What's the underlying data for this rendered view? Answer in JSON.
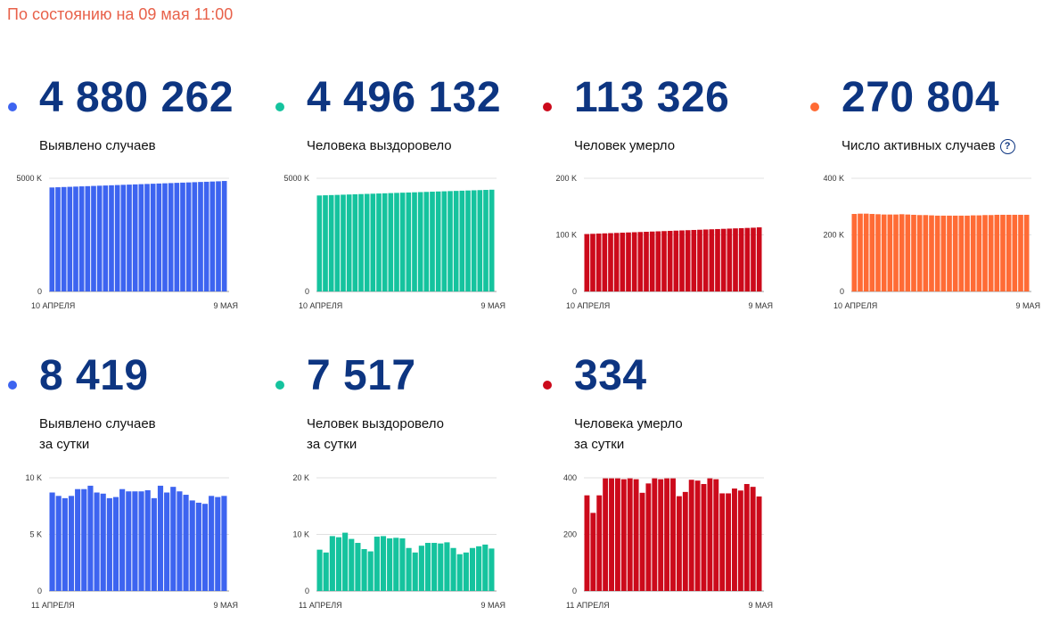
{
  "status_text": "По состоянию на 09 мая 11:00",
  "chart_data": [
    {
      "type": "bar",
      "big_value": "4 880 262",
      "label_line1": "Выявлено случаев",
      "color": "#3d64f0",
      "ylim": [
        0,
        5000
      ],
      "yticks": [
        {
          "v": 0,
          "label": "0"
        },
        {
          "v": 5000,
          "label": "5000 K"
        }
      ],
      "x_start_label": "10 АПРЕЛЯ",
      "x_end_label": "9 МАЯ",
      "values": [
        4594,
        4604,
        4614,
        4623,
        4633,
        4643,
        4652,
        4662,
        4672,
        4681,
        4691,
        4701,
        4711,
        4720,
        4730,
        4740,
        4749,
        4759,
        4769,
        4778,
        4788,
        4798,
        4808,
        4817,
        4827,
        4837,
        4846,
        4856,
        4866,
        4880
      ]
    },
    {
      "type": "bar",
      "big_value": "4 496 132",
      "label_line1": "Человека выздоровело",
      "color": "#15c39e",
      "ylim": [
        0,
        5000
      ],
      "yticks": [
        {
          "v": 0,
          "label": "0"
        },
        {
          "v": 5000,
          "label": "5000 K"
        }
      ],
      "x_start_label": "10 АПРЕЛЯ",
      "x_end_label": "9 МАЯ",
      "values": [
        4240,
        4249,
        4258,
        4266,
        4275,
        4284,
        4293,
        4302,
        4311,
        4319,
        4328,
        4337,
        4346,
        4355,
        4364,
        4372,
        4381,
        4390,
        4399,
        4408,
        4417,
        4425,
        4434,
        4443,
        4452,
        4461,
        4470,
        4478,
        4487,
        4496
      ]
    },
    {
      "type": "bar",
      "big_value": "113 326",
      "label_line1": "Человек умерло",
      "color": "#cc0a1b",
      "ylim": [
        0,
        200
      ],
      "yticks": [
        {
          "v": 0,
          "label": "0"
        },
        {
          "v": 100,
          "label": "100 K"
        },
        {
          "v": 200,
          "label": "200 K"
        }
      ],
      "x_start_label": "10 АПРЕЛЯ",
      "x_end_label": "9 МАЯ",
      "values": [
        101.5,
        101.9,
        102.3,
        102.7,
        103.1,
        103.5,
        103.9,
        104.3,
        104.7,
        105.1,
        105.5,
        105.9,
        106.3,
        106.7,
        107.1,
        107.5,
        107.9,
        108.3,
        108.7,
        109.1,
        109.5,
        109.9,
        110.3,
        110.7,
        111.1,
        111.5,
        111.9,
        112.3,
        112.7,
        113.3
      ]
    },
    {
      "type": "bar",
      "big_value": "270 804",
      "label_line1": "Число активных случаев",
      "has_help": true,
      "help_glyph": "?",
      "color": "#ff6b35",
      "ylim": [
        0,
        400
      ],
      "yticks": [
        {
          "v": 0,
          "label": "0"
        },
        {
          "v": 200,
          "label": "200 K"
        },
        {
          "v": 400,
          "label": "400 K"
        }
      ],
      "x_start_label": "10 АПРЕЛЯ",
      "x_end_label": "9 МАЯ",
      "values": [
        274,
        275,
        275,
        274,
        273,
        272,
        272,
        272,
        273,
        272,
        271,
        270,
        270,
        269,
        268,
        268,
        268,
        268,
        268,
        268,
        269,
        269,
        270,
        270,
        271,
        271,
        271,
        271,
        271,
        271
      ]
    },
    {
      "type": "bar",
      "big_value": "8 419",
      "label_line1": "Выявлено случаев",
      "label_line2": "за сутки",
      "color": "#3d64f0",
      "ylim": [
        0,
        10
      ],
      "yticks": [
        {
          "v": 0,
          "label": "0"
        },
        {
          "v": 5,
          "label": "5 K"
        },
        {
          "v": 10,
          "label": "10 K"
        }
      ],
      "x_start_label": "11 АПРЕЛЯ",
      "x_end_label": "9 МАЯ",
      "values": [
        8.7,
        8.4,
        8.2,
        8.4,
        9.0,
        9.0,
        9.3,
        8.7,
        8.6,
        8.2,
        8.3,
        9.0,
        8.8,
        8.8,
        8.8,
        8.9,
        8.2,
        9.3,
        8.7,
        9.2,
        8.8,
        8.5,
        8.0,
        7.8,
        7.7,
        8.4,
        8.3,
        8.4
      ]
    },
    {
      "type": "bar",
      "big_value": "7 517",
      "label_line1": "Человек выздоровело",
      "label_line2": "за сутки",
      "color": "#15c39e",
      "ylim": [
        0,
        20
      ],
      "yticks": [
        {
          "v": 0,
          "label": "0"
        },
        {
          "v": 10,
          "label": "10 K"
        },
        {
          "v": 20,
          "label": "20 K"
        }
      ],
      "x_start_label": "11 АПРЕЛЯ",
      "x_end_label": "9 МАЯ",
      "values": [
        7.3,
        6.8,
        9.7,
        9.5,
        10.3,
        9.2,
        8.5,
        7.4,
        7.0,
        9.6,
        9.7,
        9.3,
        9.4,
        9.3,
        7.6,
        6.8,
        8.0,
        8.5,
        8.5,
        8.4,
        8.6,
        7.6,
        6.5,
        6.8,
        7.6,
        7.9,
        8.2,
        7.5
      ]
    },
    {
      "type": "bar",
      "big_value": "334",
      "label_line1": "Человека умерло",
      "label_line2": "за сутки",
      "color": "#cc0a1b",
      "ylim": [
        0,
        400
      ],
      "yticks": [
        {
          "v": 0,
          "label": "0"
        },
        {
          "v": 200,
          "label": "200"
        },
        {
          "v": 400,
          "label": "400"
        }
      ],
      "x_start_label": "11 АПРЕЛЯ",
      "x_end_label": "9 МАЯ",
      "values": [
        338,
        276,
        338,
        398,
        398,
        398,
        395,
        398,
        395,
        347,
        380,
        398,
        395,
        398,
        398,
        335,
        350,
        393,
        390,
        378,
        398,
        395,
        345,
        345,
        362,
        355,
        378,
        368,
        334
      ]
    }
  ]
}
